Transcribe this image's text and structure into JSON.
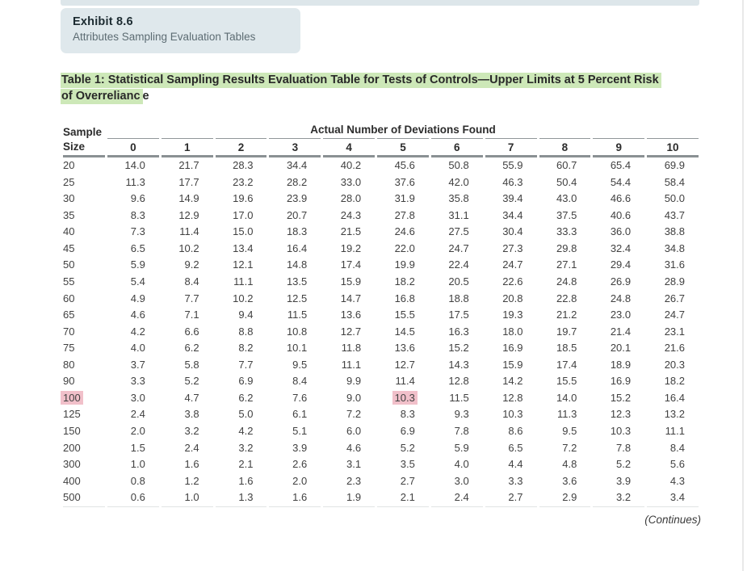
{
  "exhibit": {
    "label": "Exhibit 8.6",
    "subtitle": "Attributes Sampling Evaluation Tables"
  },
  "table_title": {
    "line1": "Table 1: Statistical Sampling Results Evaluation Table for Tests of Controls—Upper Limits at 5 Percent Risk",
    "line2_highlighted": "of Overrelianc",
    "line2_rest": "e"
  },
  "table": {
    "row_header": {
      "line1": "Sample",
      "line2": "Size"
    },
    "spanner": "Actual Number of Deviations Found",
    "columns": [
      "0",
      "1",
      "2",
      "3",
      "4",
      "5",
      "6",
      "7",
      "8",
      "9",
      "10"
    ],
    "rows": [
      {
        "size": "20",
        "values": [
          "14.0",
          "21.7",
          "28.3",
          "34.4",
          "40.2",
          "45.6",
          "50.8",
          "55.9",
          "60.7",
          "65.4",
          "69.9"
        ]
      },
      {
        "size": "25",
        "values": [
          "11.3",
          "17.7",
          "23.2",
          "28.2",
          "33.0",
          "37.6",
          "42.0",
          "46.3",
          "50.4",
          "54.4",
          "58.4"
        ]
      },
      {
        "size": "30",
        "values": [
          "9.6",
          "14.9",
          "19.6",
          "23.9",
          "28.0",
          "31.9",
          "35.8",
          "39.4",
          "43.0",
          "46.6",
          "50.0"
        ]
      },
      {
        "size": "35",
        "values": [
          "8.3",
          "12.9",
          "17.0",
          "20.7",
          "24.3",
          "27.8",
          "31.1",
          "34.4",
          "37.5",
          "40.6",
          "43.7"
        ]
      },
      {
        "size": "40",
        "values": [
          "7.3",
          "11.4",
          "15.0",
          "18.3",
          "21.5",
          "24.6",
          "27.5",
          "30.4",
          "33.3",
          "36.0",
          "38.8"
        ]
      },
      {
        "size": "45",
        "values": [
          "6.5",
          "10.2",
          "13.4",
          "16.4",
          "19.2",
          "22.0",
          "24.7",
          "27.3",
          "29.8",
          "32.4",
          "34.8"
        ]
      },
      {
        "size": "50",
        "values": [
          "5.9",
          "9.2",
          "12.1",
          "14.8",
          "17.4",
          "19.9",
          "22.4",
          "24.7",
          "27.1",
          "29.4",
          "31.6"
        ]
      },
      {
        "size": "55",
        "values": [
          "5.4",
          "8.4",
          "11.1",
          "13.5",
          "15.9",
          "18.2",
          "20.5",
          "22.6",
          "24.8",
          "26.9",
          "28.9"
        ]
      },
      {
        "size": "60",
        "values": [
          "4.9",
          "7.7",
          "10.2",
          "12.5",
          "14.7",
          "16.8",
          "18.8",
          "20.8",
          "22.8",
          "24.8",
          "26.7"
        ]
      },
      {
        "size": "65",
        "values": [
          "4.6",
          "7.1",
          "9.4",
          "11.5",
          "13.6",
          "15.5",
          "17.5",
          "19.3",
          "21.2",
          "23.0",
          "24.7"
        ]
      },
      {
        "size": "70",
        "values": [
          "4.2",
          "6.6",
          "8.8",
          "10.8",
          "12.7",
          "14.5",
          "16.3",
          "18.0",
          "19.7",
          "21.4",
          "23.1"
        ]
      },
      {
        "size": "75",
        "values": [
          "4.0",
          "6.2",
          "8.2",
          "10.1",
          "11.8",
          "13.6",
          "15.2",
          "16.9",
          "18.5",
          "20.1",
          "21.6"
        ]
      },
      {
        "size": "80",
        "values": [
          "3.7",
          "5.8",
          "7.7",
          "9.5",
          "11.1",
          "12.7",
          "14.3",
          "15.9",
          "17.4",
          "18.9",
          "20.3"
        ]
      },
      {
        "size": "90",
        "values": [
          "3.3",
          "5.2",
          "6.9",
          "8.4",
          "9.9",
          "11.4",
          "12.8",
          "14.2",
          "15.5",
          "16.9",
          "18.2"
        ]
      },
      {
        "size": "100",
        "values": [
          "3.0",
          "4.7",
          "6.2",
          "7.6",
          "9.0",
          "10.3",
          "11.5",
          "12.8",
          "14.0",
          "15.2",
          "16.4"
        ]
      },
      {
        "size": "125",
        "values": [
          "2.4",
          "3.8",
          "5.0",
          "6.1",
          "7.2",
          "8.3",
          "9.3",
          "10.3",
          "11.3",
          "12.3",
          "13.2"
        ]
      },
      {
        "size": "150",
        "values": [
          "2.0",
          "3.2",
          "4.2",
          "5.1",
          "6.0",
          "6.9",
          "7.8",
          "8.6",
          "9.5",
          "10.3",
          "11.1"
        ]
      },
      {
        "size": "200",
        "values": [
          "1.5",
          "2.4",
          "3.2",
          "3.9",
          "4.6",
          "5.2",
          "5.9",
          "6.5",
          "7.2",
          "7.8",
          "8.4"
        ]
      },
      {
        "size": "300",
        "values": [
          "1.0",
          "1.6",
          "2.1",
          "2.6",
          "3.1",
          "3.5",
          "4.0",
          "4.4",
          "4.8",
          "5.2",
          "5.6"
        ]
      },
      {
        "size": "400",
        "values": [
          "0.8",
          "1.2",
          "1.6",
          "2.0",
          "2.3",
          "2.7",
          "3.0",
          "3.3",
          "3.6",
          "3.9",
          "4.3"
        ]
      },
      {
        "size": "500",
        "values": [
          "0.6",
          "1.0",
          "1.3",
          "1.6",
          "1.9",
          "2.1",
          "2.4",
          "2.7",
          "2.9",
          "3.2",
          "3.4"
        ]
      }
    ],
    "highlight": {
      "row_index": 14,
      "size_cell": true,
      "value_index": 5
    }
  },
  "footer": {
    "continues": "(Continues)"
  },
  "colors": {
    "highlight_green": "#cde8b8",
    "highlight_pink": "#f1c0ca",
    "exhibit_box_bg": "#dfe8ec",
    "top_strip_bg": "#dde6ea"
  }
}
